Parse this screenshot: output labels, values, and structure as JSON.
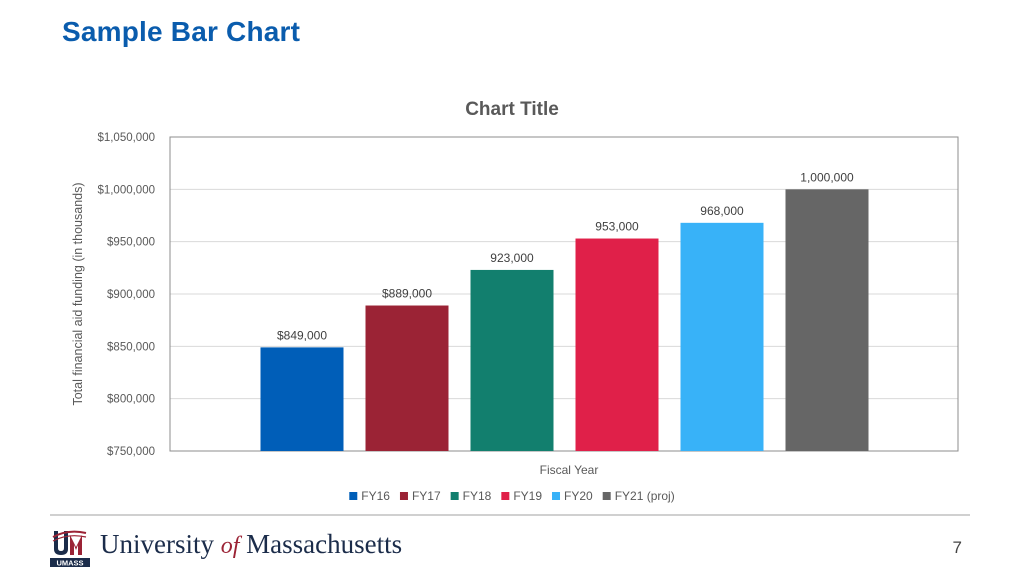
{
  "slide": {
    "title": "Sample Bar Chart",
    "page_number": "7"
  },
  "footer": {
    "wordmark_part1": "University",
    "wordmark_of": "of",
    "wordmark_part2": "Massachusetts",
    "logo_text": "UMASS"
  },
  "colors": {
    "title": "#0a5cad",
    "FY16": "#005eb8",
    "FY17": "#9b2335",
    "FY18": "#127f6e",
    "FY19": "#e02049",
    "FY20": "#38b2f8",
    "FY21": "#666666"
  },
  "chart_data": {
    "type": "bar",
    "title": "Chart Title",
    "xlabel": "Fiscal Year",
    "ylabel": "Total financial aid funding (in thousands)",
    "ylim": [
      750000,
      1050000
    ],
    "yticks": [
      "$750,000",
      "$800,000",
      "$850,000",
      "$900,000",
      "$950,000",
      "$1,000,000",
      "$1,050,000"
    ],
    "ytick_values": [
      750000,
      800000,
      850000,
      900000,
      950000,
      1000000,
      1050000
    ],
    "grid": true,
    "legend_position": "bottom",
    "series": [
      {
        "name": "FY16",
        "value": 849000,
        "label": "$849,000",
        "color": "#005eb8"
      },
      {
        "name": "FY17",
        "value": 889000,
        "label": "$889,000",
        "color": "#9b2335"
      },
      {
        "name": "FY18",
        "value": 923000,
        "label": "923,000",
        "color": "#127f6e"
      },
      {
        "name": "FY19",
        "value": 953000,
        "label": "953,000",
        "color": "#e02049"
      },
      {
        "name": "FY20",
        "value": 968000,
        "label": "968,000",
        "color": "#38b2f8"
      },
      {
        "name": "FY21 (proj)",
        "value": 1000000,
        "label": "1,000,000",
        "color": "#666666"
      }
    ]
  }
}
